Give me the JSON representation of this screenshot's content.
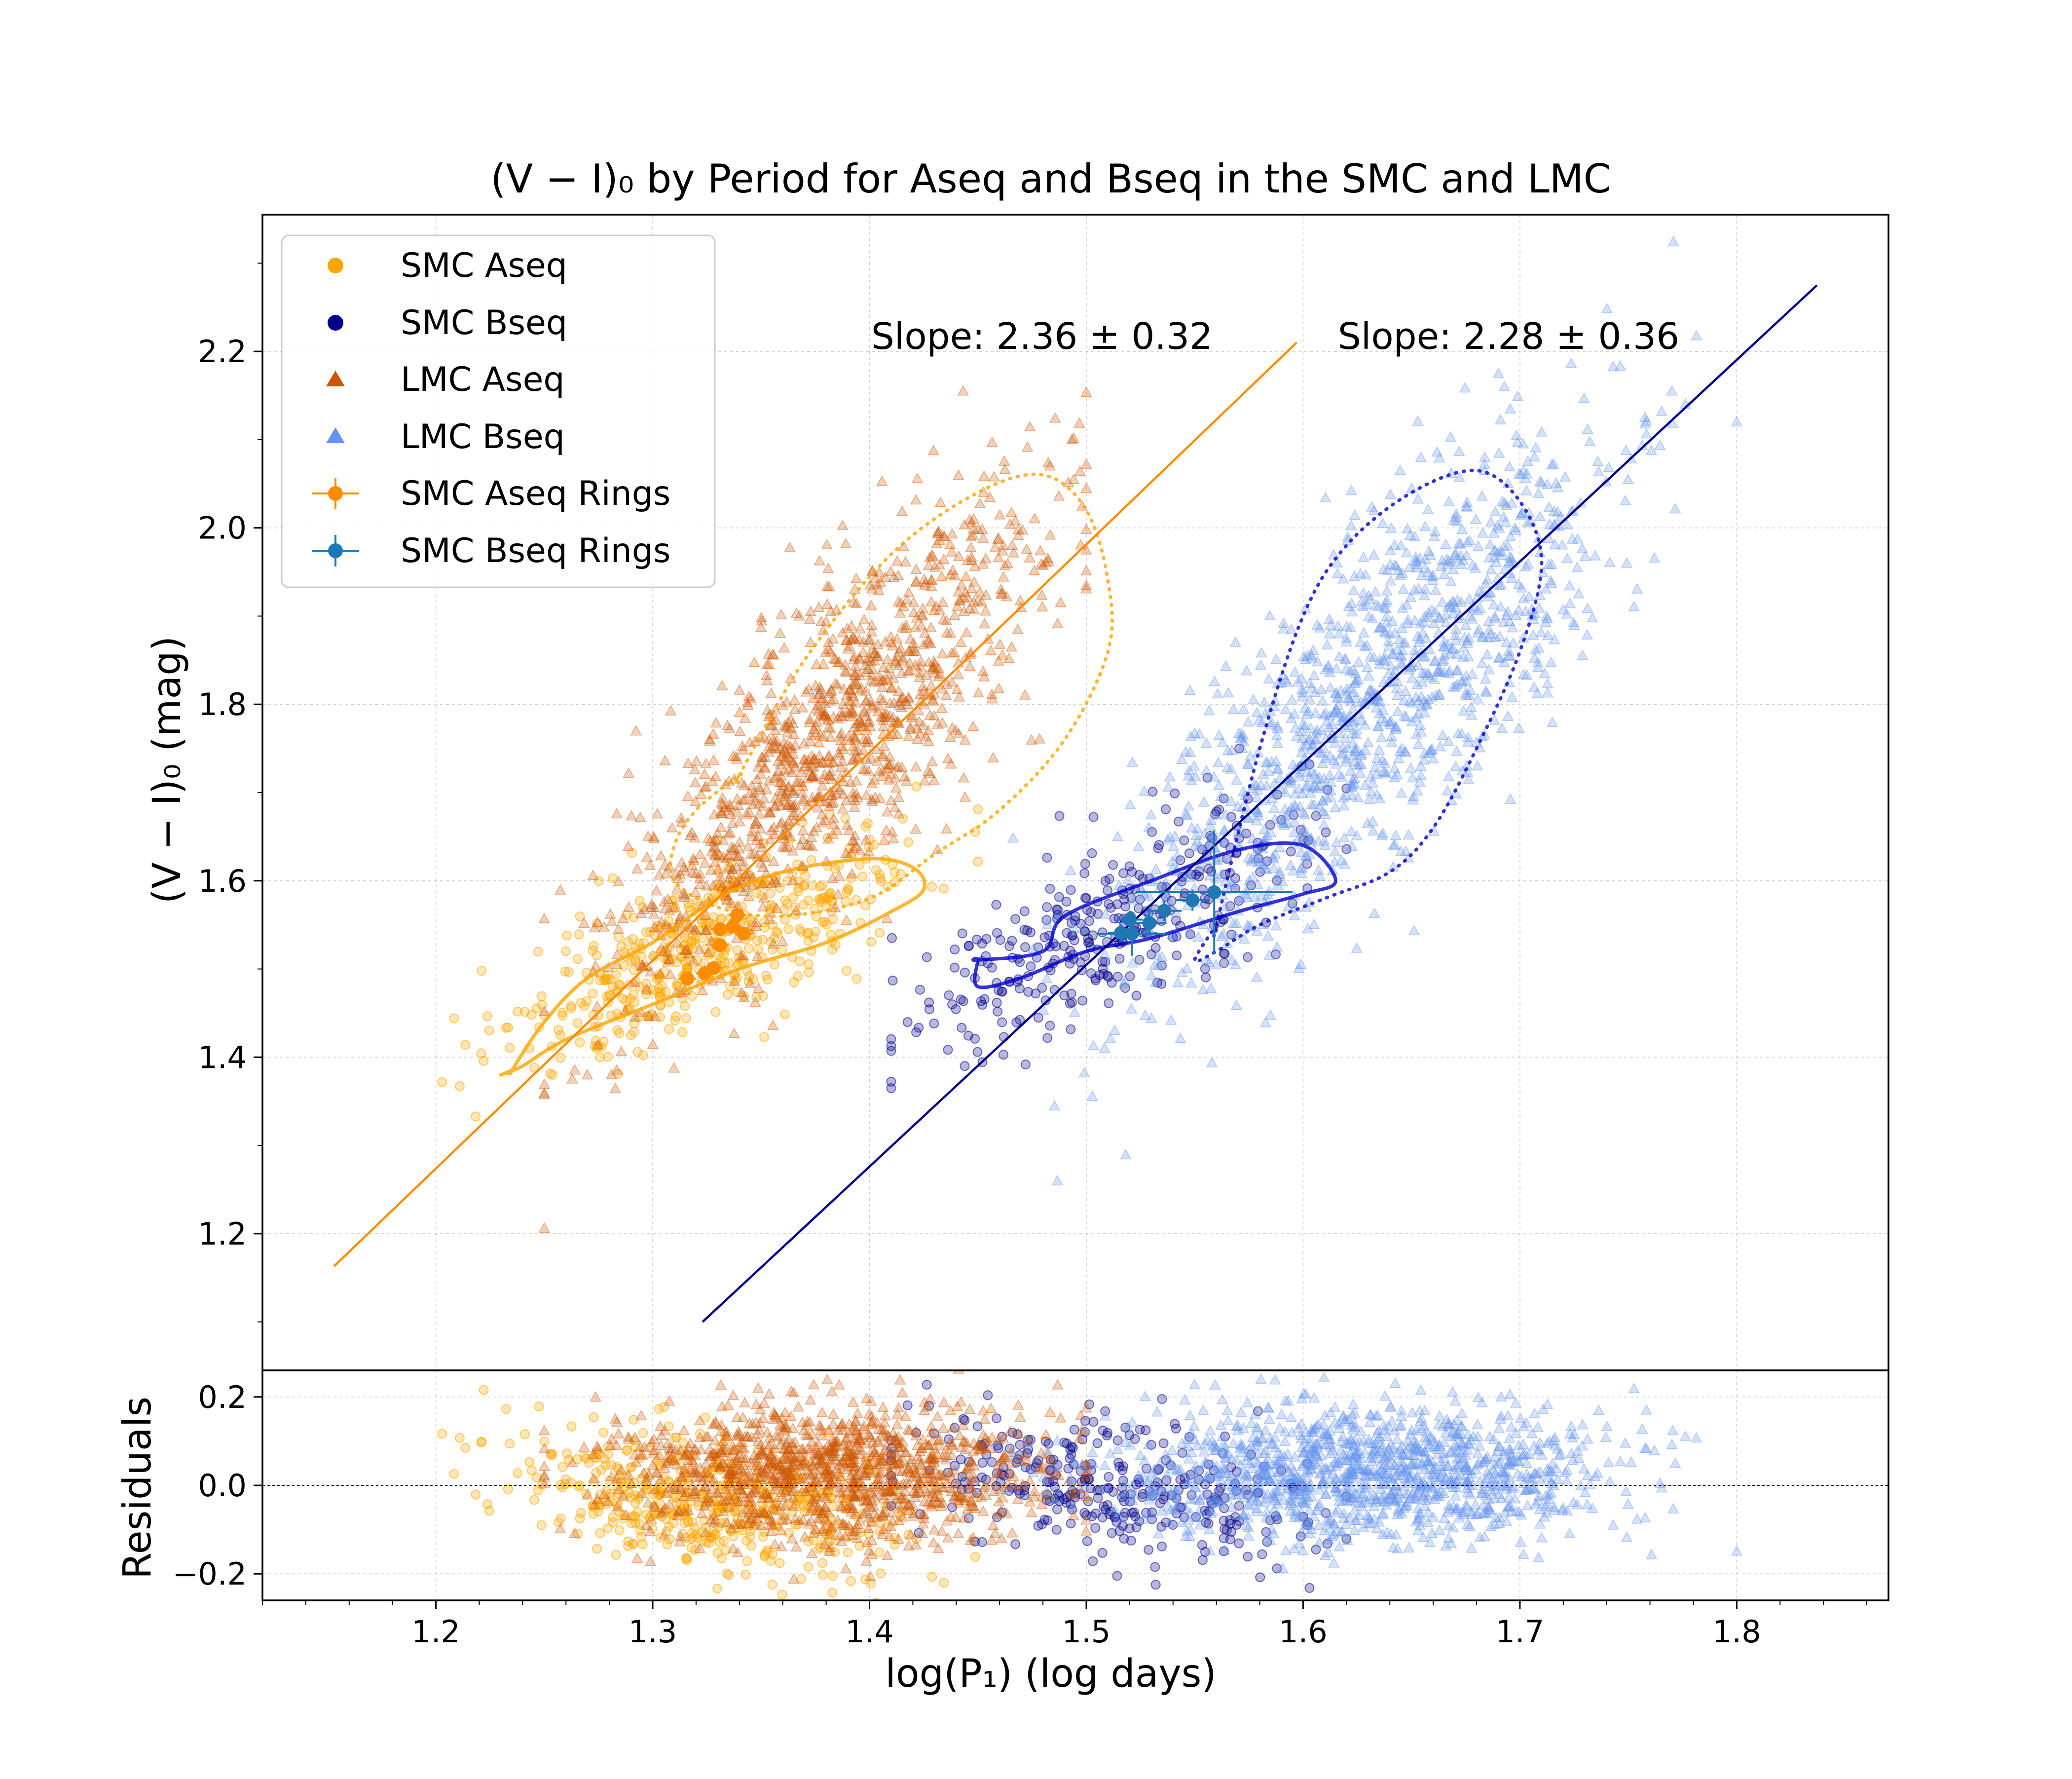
{
  "chart_data": {
    "type": "scatter",
    "title": "(V − I)₀ by Period for Aseq and Bseq in the SMC and LMC",
    "xlabel": "log(P₁) (log days)",
    "ylabel": "(V − I)₀ (mag)",
    "xlim": [
      1.12,
      1.87
    ],
    "ylim": [
      1.045,
      2.355
    ],
    "x_ticks": [
      "1.2",
      "1.3",
      "1.4",
      "1.5",
      "1.6",
      "1.7",
      "1.8"
    ],
    "y_ticks": [
      "1.2",
      "1.4",
      "1.6",
      "1.8",
      "2.0",
      "2.2"
    ],
    "grid": true,
    "legend_location": "top-left",
    "legend": [
      {
        "label": "SMC Aseq",
        "marker": "circle",
        "color": "#FFA500"
      },
      {
        "label": "SMC Bseq",
        "marker": "circle",
        "color": "#00008B"
      },
      {
        "label": "LMC Aseq",
        "marker": "triangle",
        "color": "#CC5500"
      },
      {
        "label": "LMC Bseq",
        "marker": "triangle",
        "color": "#6495ED"
      },
      {
        "label": "SMC Aseq Rings",
        "marker": "errorbar",
        "color": "#FF8C00"
      },
      {
        "label": "SMC Bseq Rings",
        "marker": "errorbar",
        "color": "#1F77B4"
      }
    ],
    "annotations": [
      "Slope: 2.36 ± 0.32",
      "Slope: 2.28 ± 0.36"
    ],
    "fit_lines": [
      {
        "name": "Aseq fit",
        "color": "#FF8C00",
        "x": [
          1.153,
          1.597
        ],
        "y": [
          1.163,
          2.21
        ]
      },
      {
        "name": "Bseq fit",
        "color": "#00008B",
        "x": [
          1.323,
          1.837
        ],
        "y": [
          1.1,
          2.275
        ]
      }
    ],
    "series_clouds": [
      {
        "name": "SMC Aseq",
        "color": "#FFA500",
        "marker": "circle",
        "n": 480,
        "x_range": [
          1.19,
          1.45
        ],
        "center": [
          1.33,
          1.53
        ],
        "x_sd": 0.045,
        "slope": 1.1,
        "y_sd": 0.045,
        "residual_offset": -0.04
      },
      {
        "name": "SMC Bseq",
        "color": "#00008B",
        "marker": "circle",
        "n": 330,
        "x_range": [
          1.41,
          1.62
        ],
        "center": [
          1.51,
          1.55
        ],
        "x_sd": 0.045,
        "slope": 1.0,
        "y_sd": 0.05,
        "residual_offset": 0.0
      },
      {
        "name": "LMC Aseq",
        "color": "#CC5500",
        "marker": "triangle",
        "n": 1200,
        "x_range": [
          1.25,
          1.5
        ],
        "center": [
          1.38,
          1.75
        ],
        "x_sd": 0.05,
        "slope": 2.36,
        "y_sd": 0.085,
        "residual_offset": 0.03
      },
      {
        "name": "LMC Bseq",
        "color": "#6495ED",
        "marker": "triangle",
        "n": 1250,
        "x_range": [
          1.46,
          1.8
        ],
        "center": [
          1.63,
          1.8
        ],
        "x_sd": 0.055,
        "slope": 2.28,
        "y_sd": 0.09,
        "residual_offset": 0.03
      }
    ],
    "contours": [
      {
        "name": "LMC Aseq contour",
        "style": "dotted",
        "color": "#FFA500",
        "x": [
          1.34,
          1.37,
          1.41,
          1.45,
          1.48,
          1.5,
          1.51,
          1.51,
          1.49,
          1.46,
          1.43,
          1.4,
          1.36,
          1.33,
          1.31,
          1.31,
          1.32,
          1.34
        ],
        "y": [
          1.72,
          1.85,
          1.97,
          2.04,
          2.06,
          2.02,
          1.94,
          1.86,
          1.76,
          1.68,
          1.63,
          1.58,
          1.56,
          1.57,
          1.6,
          1.64,
          1.68,
          1.72
        ]
      },
      {
        "name": "SMC Aseq contour",
        "style": "solid",
        "color": "#FFA500",
        "x": [
          1.235,
          1.25,
          1.27,
          1.3,
          1.33,
          1.36,
          1.4,
          1.42,
          1.425,
          1.41,
          1.38,
          1.34,
          1.3,
          1.26,
          1.24,
          1.23,
          1.235
        ],
        "y": [
          1.385,
          1.44,
          1.49,
          1.53,
          1.58,
          1.61,
          1.625,
          1.615,
          1.59,
          1.565,
          1.53,
          1.5,
          1.46,
          1.42,
          1.39,
          1.38,
          1.385
        ]
      },
      {
        "name": "LMC Bseq contour",
        "style": "dotted",
        "color": "#0000CD",
        "x": [
          1.56,
          1.58,
          1.6,
          1.62,
          1.65,
          1.68,
          1.7,
          1.71,
          1.7,
          1.68,
          1.66,
          1.64,
          1.61,
          1.58,
          1.56,
          1.55,
          1.56
        ],
        "y": [
          1.55,
          1.75,
          1.9,
          1.98,
          2.04,
          2.065,
          2.03,
          1.96,
          1.86,
          1.75,
          1.66,
          1.61,
          1.58,
          1.55,
          1.52,
          1.51,
          1.55
        ]
      },
      {
        "name": "SMC Bseq contour",
        "style": "solid",
        "color": "#0000CD",
        "x": [
          1.45,
          1.48,
          1.49,
          1.53,
          1.57,
          1.6,
          1.615,
          1.6,
          1.57,
          1.53,
          1.5,
          1.47,
          1.45,
          1.45
        ],
        "y": [
          1.51,
          1.52,
          1.56,
          1.6,
          1.635,
          1.64,
          1.6,
          1.585,
          1.565,
          1.535,
          1.52,
          1.49,
          1.48,
          1.51
        ]
      }
    ],
    "rings": [
      {
        "name": "SMC Aseq Rings",
        "color": "#FF8C00",
        "points": [
          {
            "x": 1.316,
            "y": 1.489,
            "xerr": 0.004,
            "yerr": 0.004
          },
          {
            "x": 1.324,
            "y": 1.495,
            "xerr": 0.004,
            "yerr": 0.004
          },
          {
            "x": 1.328,
            "y": 1.501,
            "xerr": 0.004,
            "yerr": 0.004
          },
          {
            "x": 1.331,
            "y": 1.527,
            "xerr": 0.004,
            "yerr": 0.004
          },
          {
            "x": 1.331,
            "y": 1.545,
            "xerr": 0.004,
            "yerr": 0.004
          },
          {
            "x": 1.337,
            "y": 1.548,
            "xerr": 0.004,
            "yerr": 0.004
          },
          {
            "x": 1.339,
            "y": 1.561,
            "xerr": 0.004,
            "yerr": 0.004
          },
          {
            "x": 1.342,
            "y": 1.54,
            "xerr": 0.004,
            "yerr": 0.004
          }
        ]
      },
      {
        "name": "SMC Bseq Rings",
        "color": "#1F77B4",
        "points": [
          {
            "x": 1.516,
            "y": 1.541,
            "xerr": 0.006,
            "yerr": 0.01
          },
          {
            "x": 1.52,
            "y": 1.556,
            "xerr": 0.006,
            "yerr": 0.01
          },
          {
            "x": 1.521,
            "y": 1.54,
            "xerr": 0.016,
            "yerr": 0.025
          },
          {
            "x": 1.529,
            "y": 1.552,
            "xerr": 0.008,
            "yerr": 0.012
          },
          {
            "x": 1.536,
            "y": 1.566,
            "xerr": 0.008,
            "yerr": 0.012
          },
          {
            "x": 1.549,
            "y": 1.578,
            "xerr": 0.008,
            "yerr": 0.012
          },
          {
            "x": 1.559,
            "y": 1.587,
            "xerr": 0.036,
            "yerr": 0.07
          }
        ]
      }
    ],
    "residuals_panel": {
      "ylabel": "Residuals",
      "ylim": [
        -0.26,
        0.26
      ],
      "y_ticks": [
        "−0.2",
        "0.0",
        "0.2"
      ],
      "zero_line": 0.0
    }
  }
}
